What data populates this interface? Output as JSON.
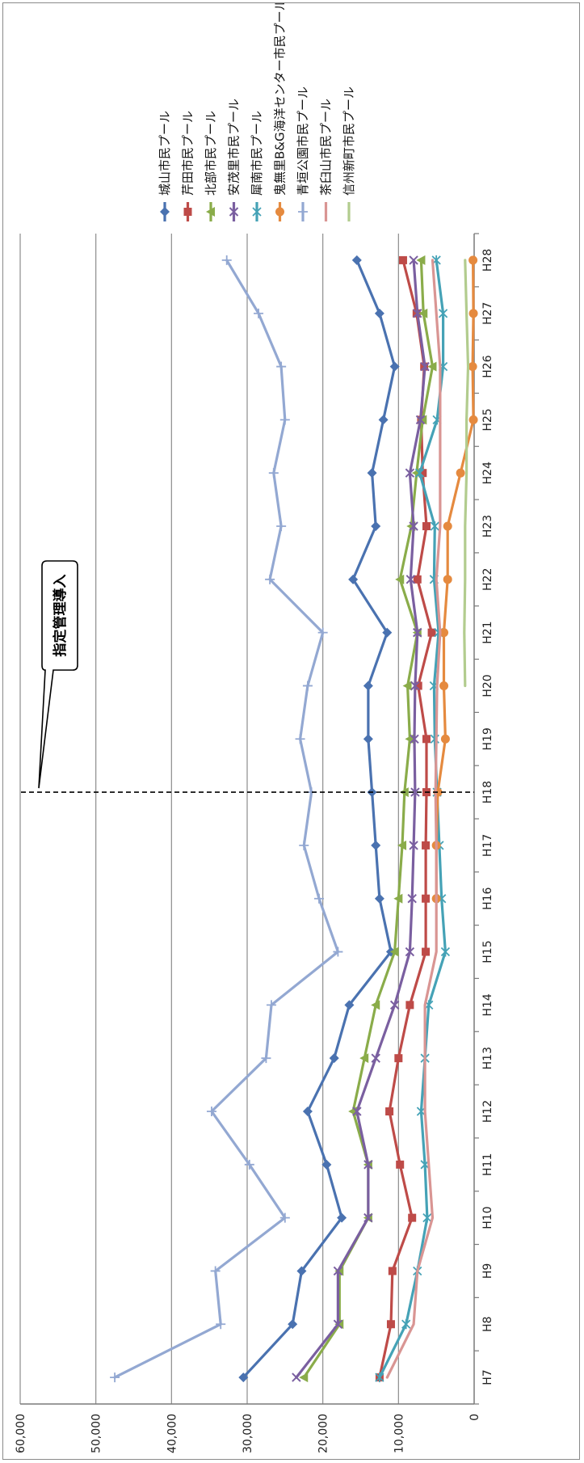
{
  "chart_data": {
    "type": "line",
    "orientation": "rotated-90-clockwise",
    "categories": [
      "H7",
      "H8",
      "H9",
      "H10",
      "H11",
      "H12",
      "H13",
      "H14",
      "H15",
      "H16",
      "H17",
      "H18",
      "H19",
      "H20",
      "H21",
      "H22",
      "H23",
      "H24",
      "H25",
      "H26",
      "H27",
      "H28"
    ],
    "ylim": [
      0,
      60000
    ],
    "yticks": [
      "0",
      "10,000",
      "20,000",
      "30,000",
      "40,000",
      "50,000",
      "60,000"
    ],
    "grid": true,
    "legend_position": "right",
    "annotation": {
      "text": "指定管理導入",
      "at_category": "H18"
    },
    "series": [
      {
        "name": "城山市民プール",
        "color": "#4a72b0",
        "marker": "diamond",
        "values": [
          30500,
          24000,
          22800,
          17500,
          19500,
          22000,
          18500,
          16500,
          11000,
          12500,
          13000,
          13500,
          14000,
          14000,
          11500,
          16000,
          13000,
          13500,
          12000,
          10500,
          12500,
          15500
        ]
      },
      {
        "name": "芹田市民プール",
        "color": "#be4b48",
        "marker": "square",
        "values": [
          12500,
          11000,
          10800,
          8200,
          9800,
          11200,
          10000,
          8500,
          6400,
          6400,
          6400,
          6300,
          6300,
          7400,
          5600,
          7500,
          6300,
          6800,
          7000,
          6600,
          7600,
          9400
        ]
      },
      {
        "name": "北部市民プール",
        "color": "#8aac4a",
        "marker": "triangle",
        "values": [
          22500,
          17800,
          17800,
          14000,
          14000,
          16000,
          14500,
          13000,
          10500,
          10000,
          9500,
          9200,
          8500,
          8800,
          7500,
          9800,
          8300,
          7600,
          6800,
          5500,
          6700,
          7000
        ]
      },
      {
        "name": "安茂里市民プール",
        "color": "#7a5fa0",
        "marker": "x",
        "values": [
          23500,
          18000,
          18000,
          14000,
          14000,
          15500,
          13000,
          10500,
          8500,
          8200,
          8000,
          7800,
          7900,
          7800,
          7500,
          8400,
          8000,
          8500,
          7100,
          6500,
          7500,
          8000
        ]
      },
      {
        "name": "犀南市民プール",
        "color": "#45a2b6",
        "marker": "asterisk",
        "values": [
          12500,
          9000,
          7500,
          6200,
          6500,
          7000,
          6500,
          6000,
          3800,
          4300,
          4600,
          4900,
          5200,
          5300,
          4700,
          5300,
          5200,
          7200,
          4900,
          4100,
          4100,
          5000
        ]
      },
      {
        "name": "鬼無里B&G海洋センター市民プール",
        "color": "#e58a3f",
        "marker": "circle",
        "values": [
          null,
          null,
          null,
          null,
          null,
          null,
          null,
          null,
          null,
          5000,
          5000,
          4800,
          3800,
          4000,
          4000,
          3500,
          3500,
          1800,
          100,
          200,
          100,
          150
        ]
      },
      {
        "name": "青垣公園市民プール",
        "color": "#93a8d2",
        "marker": "plus",
        "values": [
          47500,
          33500,
          34200,
          25000,
          29700,
          34700,
          27500,
          26800,
          18000,
          20500,
          22500,
          21500,
          23000,
          22000,
          20000,
          27000,
          25500,
          26500,
          25000,
          25500,
          28500,
          32700
        ]
      },
      {
        "name": "茶臼山市民プール",
        "color": "#d99593",
        "marker": "none",
        "values": [
          11500,
          8000,
          7500,
          5500,
          6000,
          6500,
          6500,
          6500,
          5000,
          5000,
          5000,
          5100,
          5000,
          4900,
          4500,
          5000,
          4500,
          4500,
          4500,
          4500,
          5000,
          5500
        ]
      },
      {
        "name": "信州新町市民プール",
        "color": "#b2cc8e",
        "marker": "none",
        "values": [
          null,
          null,
          null,
          null,
          null,
          null,
          null,
          null,
          null,
          null,
          null,
          null,
          null,
          1200,
          1300,
          1200,
          1200,
          1000,
          1000,
          800,
          1000,
          1200
        ]
      }
    ]
  }
}
